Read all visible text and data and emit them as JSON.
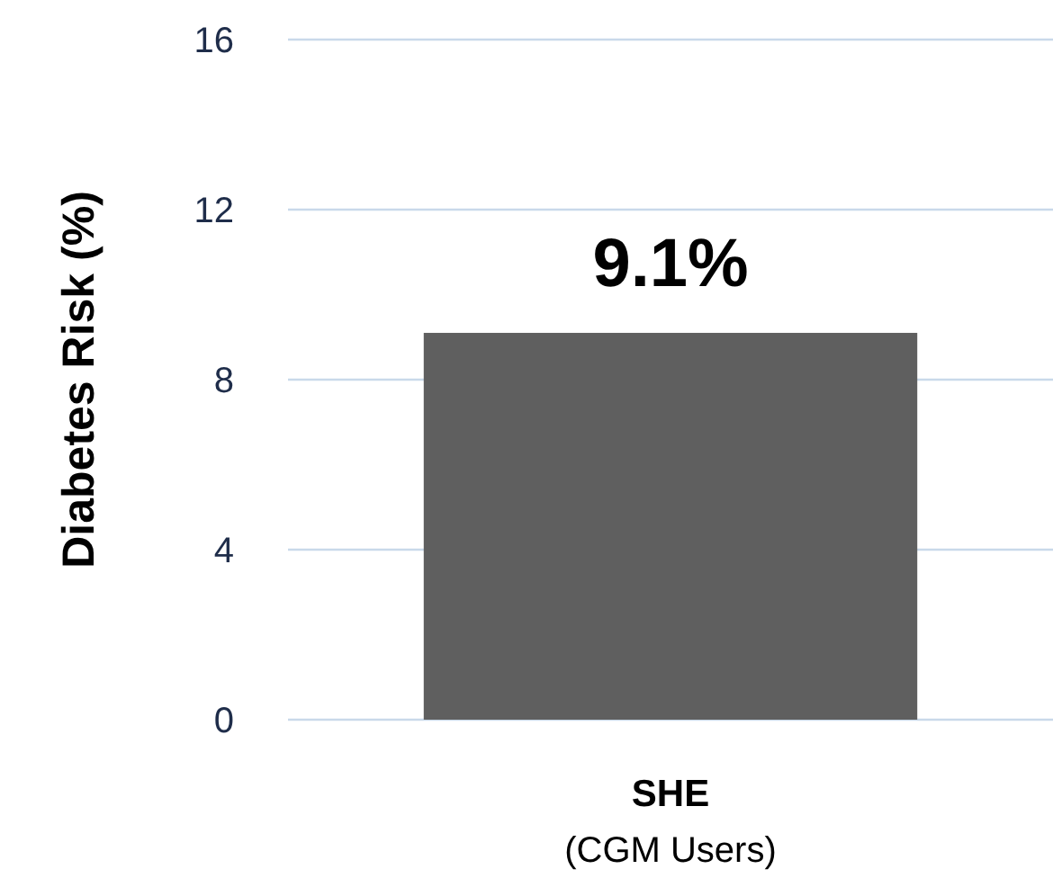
{
  "chart_data": {
    "type": "bar",
    "ylabel": "Diabetes Risk (%)",
    "categories": [
      "SHE\n(CGM Users)"
    ],
    "values": [
      9.1
    ],
    "value_labels": [
      "9.1%"
    ],
    "color": "#5f5f5f",
    "ylim": [
      0,
      16
    ],
    "yticks": [
      0,
      4,
      8,
      12,
      16
    ],
    "grid": "y"
  }
}
